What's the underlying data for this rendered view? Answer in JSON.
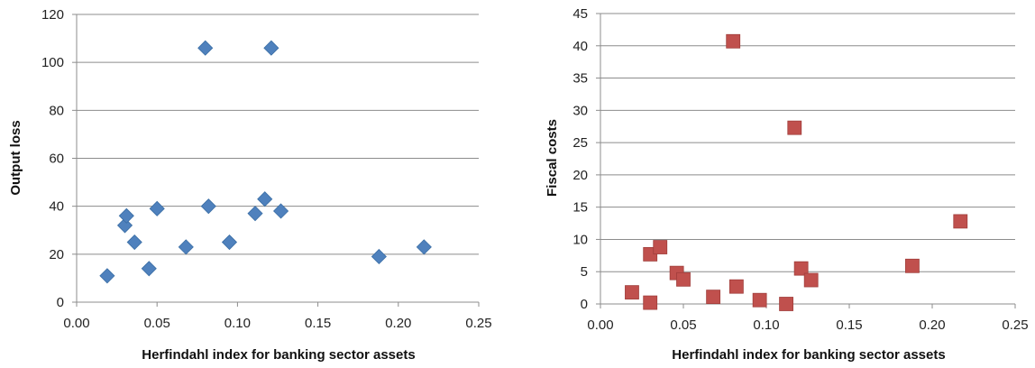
{
  "chart_data": [
    {
      "type": "scatter",
      "xlabel": "Herfindahl index for banking sector assets",
      "ylabel": "Output loss",
      "xlim": [
        0,
        0.25
      ],
      "ylim": [
        0,
        120
      ],
      "x_ticks": [
        "0.00",
        "0.05",
        "0.10",
        "0.15",
        "0.20",
        "0.25"
      ],
      "y_ticks": [
        "0",
        "20",
        "40",
        "60",
        "80",
        "100",
        "120"
      ],
      "grid": "horizontal",
      "marker": "diamond",
      "color": "#4F81BD",
      "points": [
        {
          "x": 0.019,
          "y": 11
        },
        {
          "x": 0.03,
          "y": 32
        },
        {
          "x": 0.031,
          "y": 36
        },
        {
          "x": 0.036,
          "y": 25
        },
        {
          "x": 0.045,
          "y": 14
        },
        {
          "x": 0.05,
          "y": 39
        },
        {
          "x": 0.068,
          "y": 23
        },
        {
          "x": 0.08,
          "y": 106
        },
        {
          "x": 0.082,
          "y": 40
        },
        {
          "x": 0.095,
          "y": 25
        },
        {
          "x": 0.111,
          "y": 37
        },
        {
          "x": 0.117,
          "y": 43
        },
        {
          "x": 0.121,
          "y": 106
        },
        {
          "x": 0.127,
          "y": 38
        },
        {
          "x": 0.188,
          "y": 19
        },
        {
          "x": 0.216,
          "y": 23
        }
      ]
    },
    {
      "type": "scatter",
      "xlabel": "Herfindahl index for banking sector assets",
      "ylabel": "Fiscal costs",
      "xlim": [
        0,
        0.25
      ],
      "ylim": [
        0,
        45
      ],
      "x_ticks": [
        "0.00",
        "0.05",
        "0.10",
        "0.15",
        "0.20",
        "0.25"
      ],
      "y_ticks": [
        "0",
        "5",
        "10",
        "15",
        "20",
        "25",
        "30",
        "35",
        "40",
        "45"
      ],
      "grid": "horizontal",
      "marker": "square",
      "color": "#C0504D",
      "points": [
        {
          "x": 0.019,
          "y": 1.8
        },
        {
          "x": 0.03,
          "y": 7.7
        },
        {
          "x": 0.03,
          "y": 0.2
        },
        {
          "x": 0.036,
          "y": 8.8
        },
        {
          "x": 0.046,
          "y": 4.8
        },
        {
          "x": 0.05,
          "y": 3.8
        },
        {
          "x": 0.068,
          "y": 1.1
        },
        {
          "x": 0.08,
          "y": 40.7
        },
        {
          "x": 0.082,
          "y": 2.7
        },
        {
          "x": 0.096,
          "y": 0.6
        },
        {
          "x": 0.112,
          "y": 0.0
        },
        {
          "x": 0.117,
          "y": 27.3
        },
        {
          "x": 0.121,
          "y": 5.5
        },
        {
          "x": 0.127,
          "y": 3.7
        },
        {
          "x": 0.188,
          "y": 5.9
        },
        {
          "x": 0.217,
          "y": 12.8
        }
      ]
    }
  ]
}
